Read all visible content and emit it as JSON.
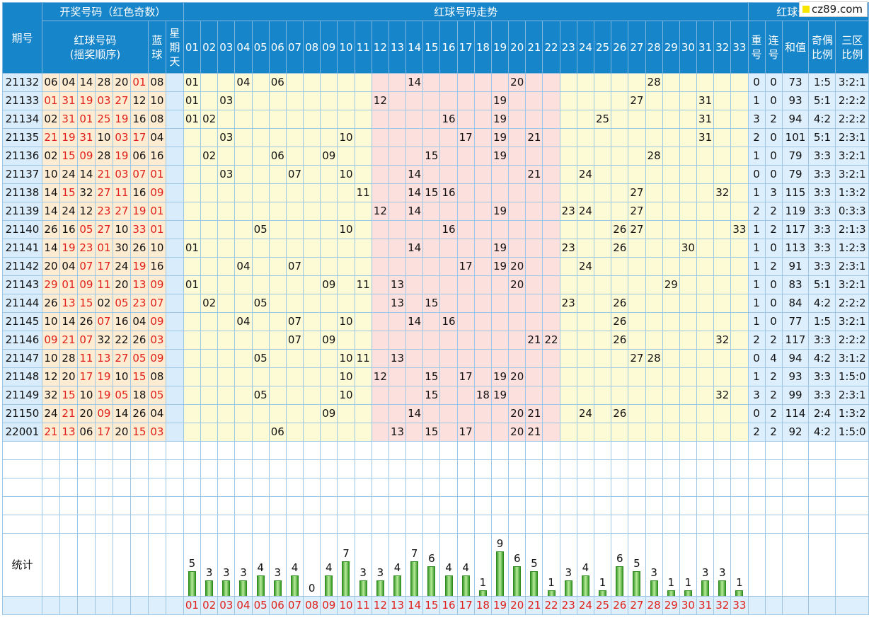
{
  "header": {
    "draw_title": "开奖号码（红色奇数）",
    "trend_title": "红球号码走势",
    "analysis_title": "红球号码分析",
    "period_label": "期号",
    "red_balls_label": "红球号码",
    "red_balls_sub": "(摇奖顺序)",
    "blue_label": "蓝球",
    "weekday_label": "星期天",
    "repeat_label": "重号",
    "consec_label": "连号",
    "sum_label": "和值",
    "oddeven_label": "奇偶比例",
    "zone_label": "三区比例"
  },
  "site_logo": "cz89.com",
  "number_columns": [
    "01",
    "02",
    "03",
    "04",
    "05",
    "06",
    "07",
    "08",
    "09",
    "10",
    "11",
    "12",
    "13",
    "14",
    "15",
    "16",
    "17",
    "18",
    "19",
    "20",
    "21",
    "22",
    "23",
    "24",
    "25",
    "26",
    "27",
    "28",
    "29",
    "30",
    "31",
    "32",
    "33"
  ],
  "rows": [
    {
      "period": "21132",
      "reds": [
        "06",
        "04",
        "14",
        "28",
        "20",
        "01"
      ],
      "blue": "08",
      "hits": [
        "01",
        "04",
        "06",
        "14",
        "20",
        "28"
      ],
      "repeat": "0",
      "consec": "0",
      "sum": "73",
      "oddeven": "1:5",
      "zone": "3:2:1"
    },
    {
      "period": "21133",
      "reds": [
        "01",
        "31",
        "19",
        "03",
        "27",
        "12"
      ],
      "blue": "10",
      "hits": [
        "01",
        "03",
        "12",
        "19",
        "27",
        "31"
      ],
      "repeat": "1",
      "consec": "0",
      "sum": "93",
      "oddeven": "5:1",
      "zone": "2:2:2"
    },
    {
      "period": "21134",
      "reds": [
        "02",
        "31",
        "01",
        "25",
        "19",
        "16"
      ],
      "blue": "08",
      "hits": [
        "01",
        "02",
        "16",
        "19",
        "25",
        "31"
      ],
      "repeat": "3",
      "consec": "2",
      "sum": "94",
      "oddeven": "4:2",
      "zone": "2:2:2"
    },
    {
      "period": "21135",
      "reds": [
        "21",
        "19",
        "31",
        "10",
        "03",
        "17"
      ],
      "blue": "04",
      "hits": [
        "03",
        "10",
        "17",
        "19",
        "21",
        "31"
      ],
      "repeat": "2",
      "consec": "0",
      "sum": "101",
      "oddeven": "5:1",
      "zone": "2:3:1"
    },
    {
      "period": "21136",
      "reds": [
        "02",
        "15",
        "09",
        "28",
        "19",
        "06"
      ],
      "blue": "16",
      "hits": [
        "02",
        "06",
        "09",
        "15",
        "19",
        "28"
      ],
      "repeat": "1",
      "consec": "0",
      "sum": "79",
      "oddeven": "3:3",
      "zone": "3:2:1"
    },
    {
      "period": "21137",
      "reds": [
        "10",
        "24",
        "14",
        "21",
        "03",
        "07"
      ],
      "blue": "01",
      "hits": [
        "03",
        "07",
        "10",
        "14",
        "21",
        "24"
      ],
      "repeat": "0",
      "consec": "0",
      "sum": "79",
      "oddeven": "3:3",
      "zone": "3:2:1"
    },
    {
      "period": "21138",
      "reds": [
        "14",
        "15",
        "32",
        "27",
        "11",
        "16"
      ],
      "blue": "09",
      "hits": [
        "11",
        "14",
        "15",
        "16",
        "27",
        "32"
      ],
      "repeat": "1",
      "consec": "3",
      "sum": "115",
      "oddeven": "3:3",
      "zone": "1:3:2"
    },
    {
      "period": "21139",
      "reds": [
        "14",
        "24",
        "12",
        "23",
        "27",
        "19"
      ],
      "blue": "01",
      "hits": [
        "12",
        "14",
        "19",
        "23",
        "24",
        "27"
      ],
      "repeat": "2",
      "consec": "2",
      "sum": "119",
      "oddeven": "3:3",
      "zone": "0:3:3"
    },
    {
      "period": "21140",
      "reds": [
        "26",
        "16",
        "05",
        "27",
        "10",
        "33"
      ],
      "blue": "01",
      "hits": [
        "05",
        "10",
        "16",
        "26",
        "27",
        "33"
      ],
      "repeat": "1",
      "consec": "2",
      "sum": "117",
      "oddeven": "3:3",
      "zone": "2:1:3"
    },
    {
      "period": "21141",
      "reds": [
        "14",
        "19",
        "23",
        "01",
        "30",
        "26"
      ],
      "blue": "10",
      "hits": [
        "01",
        "14",
        "19",
        "23",
        "26",
        "30"
      ],
      "repeat": "1",
      "consec": "0",
      "sum": "113",
      "oddeven": "3:3",
      "zone": "1:2:3"
    },
    {
      "period": "21142",
      "reds": [
        "20",
        "04",
        "07",
        "17",
        "24",
        "19"
      ],
      "blue": "16",
      "hits": [
        "04",
        "07",
        "17",
        "19",
        "20",
        "24"
      ],
      "repeat": "1",
      "consec": "2",
      "sum": "91",
      "oddeven": "3:3",
      "zone": "2:3:1"
    },
    {
      "period": "21143",
      "reds": [
        "29",
        "01",
        "09",
        "11",
        "20",
        "13"
      ],
      "blue": "09",
      "hits": [
        "01",
        "09",
        "11",
        "13",
        "20",
        "29"
      ],
      "repeat": "1",
      "consec": "0",
      "sum": "83",
      "oddeven": "5:1",
      "zone": "3:2:1"
    },
    {
      "period": "21144",
      "reds": [
        "26",
        "13",
        "15",
        "02",
        "05",
        "23"
      ],
      "blue": "07",
      "hits": [
        "02",
        "05",
        "13",
        "15",
        "23",
        "26"
      ],
      "repeat": "1",
      "consec": "0",
      "sum": "84",
      "oddeven": "4:2",
      "zone": "2:2:2"
    },
    {
      "period": "21145",
      "reds": [
        "10",
        "14",
        "26",
        "07",
        "16",
        "04"
      ],
      "blue": "09",
      "hits": [
        "04",
        "07",
        "10",
        "14",
        "16",
        "26"
      ],
      "repeat": "1",
      "consec": "0",
      "sum": "77",
      "oddeven": "1:5",
      "zone": "3:2:1"
    },
    {
      "period": "21146",
      "reds": [
        "09",
        "21",
        "07",
        "32",
        "22",
        "26"
      ],
      "blue": "03",
      "hits": [
        "07",
        "09",
        "21",
        "22",
        "26",
        "32"
      ],
      "repeat": "2",
      "consec": "2",
      "sum": "117",
      "oddeven": "3:3",
      "zone": "2:2:2"
    },
    {
      "period": "21147",
      "reds": [
        "10",
        "28",
        "11",
        "13",
        "27",
        "05"
      ],
      "blue": "09",
      "hits": [
        "05",
        "10",
        "11",
        "13",
        "27",
        "28"
      ],
      "repeat": "0",
      "consec": "4",
      "sum": "94",
      "oddeven": "4:2",
      "zone": "3:1:2"
    },
    {
      "period": "21148",
      "reds": [
        "12",
        "20",
        "17",
        "19",
        "10",
        "15"
      ],
      "blue": "08",
      "hits": [
        "10",
        "12",
        "15",
        "17",
        "19",
        "20"
      ],
      "repeat": "1",
      "consec": "2",
      "sum": "93",
      "oddeven": "3:3",
      "zone": "1:5:0"
    },
    {
      "period": "21149",
      "reds": [
        "32",
        "15",
        "10",
        "19",
        "05",
        "18"
      ],
      "blue": "05",
      "hits": [
        "05",
        "10",
        "15",
        "18",
        "19",
        "32"
      ],
      "repeat": "3",
      "consec": "2",
      "sum": "99",
      "oddeven": "3:3",
      "zone": "2:3:1"
    },
    {
      "period": "21150",
      "reds": [
        "24",
        "21",
        "20",
        "09",
        "14",
        "26"
      ],
      "blue": "04",
      "hits": [
        "09",
        "14",
        "20",
        "21",
        "24",
        "26"
      ],
      "repeat": "0",
      "consec": "2",
      "sum": "114",
      "oddeven": "2:4",
      "zone": "1:3:2"
    },
    {
      "period": "22001",
      "reds": [
        "21",
        "13",
        "06",
        "17",
        "20",
        "15"
      ],
      "blue": "03",
      "hits": [
        "06",
        "13",
        "15",
        "17",
        "20",
        "21"
      ],
      "repeat": "2",
      "consec": "2",
      "sum": "92",
      "oddeven": "4:2",
      "zone": "1:5:0"
    }
  ],
  "stats_label": "统计",
  "chart_data": {
    "type": "bar",
    "categories": [
      "01",
      "02",
      "03",
      "04",
      "05",
      "06",
      "07",
      "08",
      "09",
      "10",
      "11",
      "12",
      "13",
      "14",
      "15",
      "16",
      "17",
      "18",
      "19",
      "20",
      "21",
      "22",
      "23",
      "24",
      "25",
      "26",
      "27",
      "28",
      "29",
      "30",
      "31",
      "32",
      "33"
    ],
    "values": [
      5,
      3,
      3,
      3,
      4,
      3,
      4,
      0,
      4,
      7,
      3,
      3,
      4,
      7,
      6,
      4,
      4,
      1,
      9,
      6,
      5,
      1,
      3,
      4,
      1,
      6,
      5,
      3,
      1,
      1,
      3,
      3,
      1
    ]
  },
  "colors": {
    "header": "#1785c9",
    "red": "#e0201a",
    "zone_yellow": "#fdfbd6",
    "zone_pink": "#fce0de",
    "bar": "#3a9a2a"
  }
}
